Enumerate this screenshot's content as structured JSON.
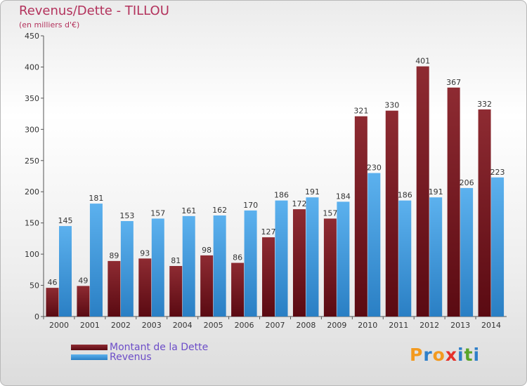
{
  "header": {
    "title": "Revenus/Dette - TILLOU",
    "subtitle": "(en milliers d'€)"
  },
  "colors": {
    "dette": "#7a1a22",
    "revenus": "#3b99e0",
    "title": "#b3325c",
    "legend_text": "#6c4dc8"
  },
  "logo": {
    "letters": [
      "P",
      "r",
      "o",
      "x",
      "i",
      "t",
      "i"
    ],
    "colors": [
      "#f39a1f",
      "#2e7fc9",
      "#f39a1f",
      "#e6312a",
      "#2e7fc9",
      "#5aa52a",
      "#2e7fc9"
    ]
  },
  "chart_data": {
    "type": "bar",
    "title": "Revenus/Dette - TILLOU",
    "subtitle": "(en milliers d'€)",
    "categories": [
      "2000",
      "2001",
      "2002",
      "2003",
      "2004",
      "2005",
      "2006",
      "2007",
      "2008",
      "2009",
      "2010",
      "2011",
      "2012",
      "2013",
      "2014"
    ],
    "series": [
      {
        "name": "Montant de la Dette",
        "values": [
          46,
          49,
          89,
          93,
          81,
          98,
          86,
          127,
          172,
          157,
          321,
          330,
          401,
          367,
          332
        ]
      },
      {
        "name": "Revenus",
        "values": [
          145,
          181,
          153,
          157,
          161,
          162,
          170,
          186,
          191,
          184,
          230,
          186,
          191,
          206,
          223
        ]
      }
    ],
    "ylim": [
      0,
      450
    ],
    "yticks": [
      0,
      50,
      100,
      150,
      200,
      250,
      300,
      350,
      400,
      450
    ],
    "grid": false,
    "legend": "bottom-left"
  }
}
